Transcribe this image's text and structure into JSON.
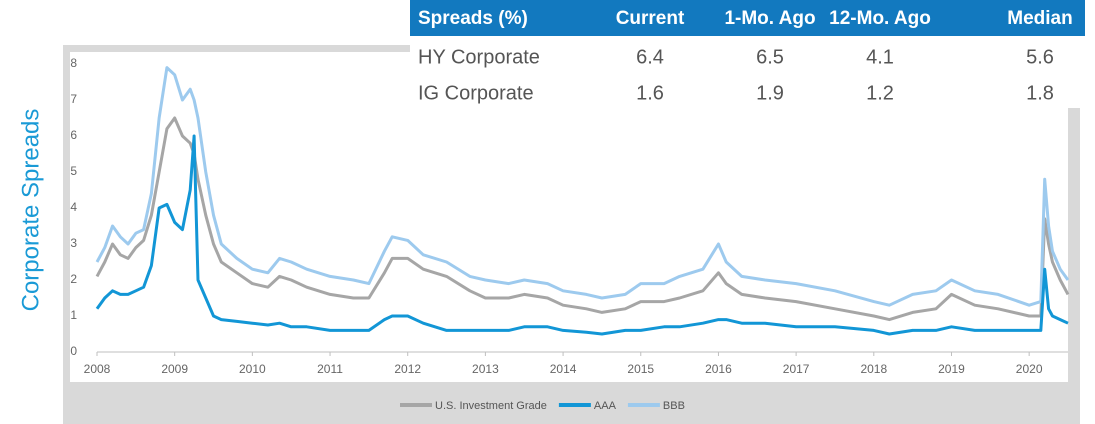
{
  "chart_data": {
    "type": "line",
    "y_label": "Corporate Spreads",
    "x": [
      2008.0,
      2008.1,
      2008.2,
      2008.3,
      2008.4,
      2008.5,
      2008.6,
      2008.7,
      2008.8,
      2008.9,
      2009.0,
      2009.1,
      2009.2,
      2009.25,
      2009.3,
      2009.4,
      2009.5,
      2009.6,
      2009.8,
      2010.0,
      2010.2,
      2010.35,
      2010.5,
      2010.7,
      2011.0,
      2011.3,
      2011.5,
      2011.7,
      2011.8,
      2012.0,
      2012.2,
      2012.5,
      2012.8,
      2013.0,
      2013.3,
      2013.5,
      2013.8,
      2014.0,
      2014.3,
      2014.5,
      2014.8,
      2015.0,
      2015.3,
      2015.5,
      2015.8,
      2016.0,
      2016.1,
      2016.3,
      2016.6,
      2017.0,
      2017.5,
      2018.0,
      2018.2,
      2018.5,
      2018.8,
      2019.0,
      2019.3,
      2019.6,
      2020.0,
      2020.15,
      2020.2,
      2020.25,
      2020.3,
      2020.4,
      2020.5
    ],
    "series": [
      {
        "name": "U.S. Investment Grade",
        "color": "#a6a6a6",
        "values": [
          2.1,
          2.5,
          3.0,
          2.7,
          2.6,
          2.9,
          3.1,
          3.8,
          5.0,
          6.2,
          6.5,
          6.0,
          5.8,
          5.5,
          4.8,
          3.8,
          3.0,
          2.5,
          2.2,
          1.9,
          1.8,
          2.1,
          2.0,
          1.8,
          1.6,
          1.5,
          1.5,
          2.2,
          2.6,
          2.6,
          2.3,
          2.1,
          1.7,
          1.5,
          1.5,
          1.6,
          1.5,
          1.3,
          1.2,
          1.1,
          1.2,
          1.4,
          1.4,
          1.5,
          1.7,
          2.2,
          1.9,
          1.6,
          1.5,
          1.4,
          1.2,
          1.0,
          0.9,
          1.1,
          1.2,
          1.6,
          1.3,
          1.2,
          1.0,
          1.0,
          3.7,
          3.0,
          2.5,
          2.0,
          1.6
        ]
      },
      {
        "name": "AAA",
        "color": "#1296d6",
        "values": [
          1.2,
          1.5,
          1.7,
          1.6,
          1.6,
          1.7,
          1.8,
          2.4,
          4.0,
          4.1,
          3.6,
          3.4,
          4.5,
          6.0,
          2.0,
          1.5,
          1.0,
          0.9,
          0.85,
          0.8,
          0.75,
          0.8,
          0.7,
          0.7,
          0.6,
          0.6,
          0.6,
          0.9,
          1.0,
          1.0,
          0.8,
          0.6,
          0.6,
          0.6,
          0.6,
          0.7,
          0.7,
          0.6,
          0.55,
          0.5,
          0.6,
          0.6,
          0.7,
          0.7,
          0.8,
          0.9,
          0.9,
          0.8,
          0.8,
          0.7,
          0.7,
          0.6,
          0.5,
          0.6,
          0.6,
          0.7,
          0.6,
          0.6,
          0.6,
          0.6,
          2.3,
          1.2,
          1.0,
          0.9,
          0.8
        ]
      },
      {
        "name": "BBB",
        "color": "#9dcaee",
        "values": [
          2.5,
          2.9,
          3.5,
          3.2,
          3.0,
          3.3,
          3.4,
          4.4,
          6.5,
          7.9,
          7.7,
          7.0,
          7.3,
          7.0,
          6.5,
          5.0,
          3.8,
          3.0,
          2.6,
          2.3,
          2.2,
          2.6,
          2.5,
          2.3,
          2.1,
          2.0,
          1.9,
          2.8,
          3.2,
          3.1,
          2.7,
          2.5,
          2.1,
          2.0,
          1.9,
          2.0,
          1.9,
          1.7,
          1.6,
          1.5,
          1.6,
          1.9,
          1.9,
          2.1,
          2.3,
          3.0,
          2.5,
          2.1,
          2.0,
          1.9,
          1.7,
          1.4,
          1.3,
          1.6,
          1.7,
          2.0,
          1.7,
          1.6,
          1.3,
          1.4,
          4.8,
          3.5,
          2.8,
          2.3,
          2.0
        ]
      }
    ],
    "xlim": [
      2008,
      2020.5
    ],
    "xticks": [
      2008,
      2009,
      2010,
      2011,
      2012,
      2013,
      2014,
      2015,
      2016,
      2017,
      2018,
      2019,
      2020
    ],
    "ylim": [
      0,
      8
    ],
    "yticks": [
      0,
      1,
      2,
      3,
      4,
      5,
      6,
      7,
      8
    ],
    "legend": "bottom"
  },
  "table": {
    "header": [
      "Spreads (%)",
      "Current",
      "1-Mo. Ago",
      "12-Mo. Ago",
      "Median"
    ],
    "rows": [
      [
        "HY Corporate",
        6.4,
        6.5,
        4.1,
        5.6
      ],
      [
        "IG Corporate",
        1.6,
        1.9,
        1.2,
        1.8
      ]
    ]
  }
}
